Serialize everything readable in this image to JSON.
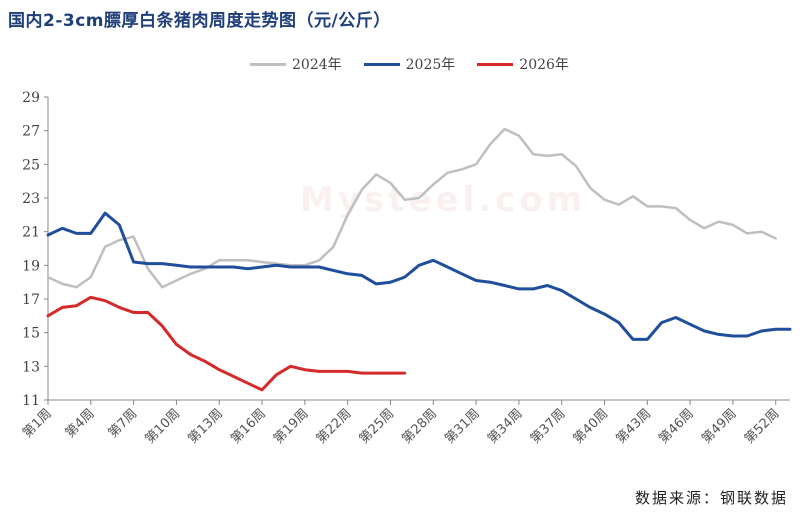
{
  "title": "国内2-3cm膘厚白条猪肉周度走势图（元/公斤）",
  "source": "数据来源：钢联数据",
  "watermark": "Mysteel.com",
  "chart_data": {
    "type": "line",
    "title": "国内2-3cm膘厚白条猪肉周度走势图（元/公斤）",
    "xlabel": "",
    "ylabel": "",
    "ylim": [
      11,
      29
    ],
    "yticks": [
      11,
      13,
      15,
      17,
      19,
      21,
      23,
      25,
      27,
      29
    ],
    "grid": false,
    "legend_position": "top-center",
    "x": [
      "第1周",
      "第2周",
      "第3周",
      "第4周",
      "第5周",
      "第6周",
      "第7周",
      "第8周",
      "第9周",
      "第10周",
      "第11周",
      "第12周",
      "第13周",
      "第14周",
      "第15周",
      "第16周",
      "第17周",
      "第18周",
      "第19周",
      "第20周",
      "第21周",
      "第22周",
      "第23周",
      "第24周",
      "第25周",
      "第26周",
      "第27周",
      "第28周",
      "第29周",
      "第30周",
      "第31周",
      "第32周",
      "第33周",
      "第34周",
      "第35周",
      "第36周",
      "第37周",
      "第38周",
      "第39周",
      "第40周",
      "第41周",
      "第42周",
      "第43周",
      "第44周",
      "第45周",
      "第46周",
      "第47周",
      "第48周",
      "第49周",
      "第50周",
      "第51周",
      "第52周",
      "第53周"
    ],
    "x_tick_labels": [
      "第1周",
      "第4周",
      "第7周",
      "第10周",
      "第13周",
      "第16周",
      "第19周",
      "第22周",
      "第25周",
      "第28周",
      "第31周",
      "第34周",
      "第37周",
      "第40周",
      "第43周",
      "第46周",
      "第49周",
      "第52周"
    ],
    "series": [
      {
        "name": "2024年",
        "color": "#bfbfbf",
        "values": [
          18.3,
          17.9,
          17.7,
          18.3,
          20.1,
          20.5,
          20.7,
          18.8,
          17.7,
          18.1,
          18.5,
          18.8,
          19.3,
          19.3,
          19.3,
          19.2,
          19.1,
          19.0,
          19.0,
          19.3,
          20.1,
          22.0,
          23.5,
          24.4,
          23.9,
          22.9,
          23.0,
          23.8,
          24.5,
          24.7,
          25.0,
          26.2,
          27.1,
          26.7,
          25.6,
          25.5,
          25.6,
          24.9,
          23.6,
          22.9,
          22.6,
          23.1,
          22.5,
          22.5,
          22.4,
          21.7,
          21.2,
          21.6,
          21.4,
          20.9,
          21.0,
          20.6,
          null
        ]
      },
      {
        "name": "2025年",
        "color": "#1f4e9c",
        "values": [
          20.8,
          21.2,
          20.9,
          20.9,
          22.1,
          21.4,
          19.2,
          19.1,
          19.1,
          19.0,
          18.9,
          18.9,
          18.9,
          18.9,
          18.8,
          18.9,
          19.0,
          18.9,
          18.9,
          18.9,
          18.7,
          18.5,
          18.4,
          17.9,
          18.0,
          18.3,
          19.0,
          19.3,
          18.9,
          18.5,
          18.1,
          18.0,
          17.8,
          17.6,
          17.6,
          17.8,
          17.5,
          17.0,
          16.5,
          16.1,
          15.6,
          14.6,
          14.6,
          15.6,
          15.9,
          15.5,
          15.1,
          14.9,
          14.8,
          14.8,
          15.1,
          15.2,
          15.2
        ]
      },
      {
        "name": "2026年",
        "color": "#d42a2a",
        "values": [
          16.0,
          16.5,
          16.6,
          17.1,
          16.9,
          16.5,
          16.2,
          16.2,
          15.4,
          14.3,
          13.7,
          13.3,
          12.8,
          12.4,
          12.0,
          11.6,
          12.5,
          13.0,
          12.8,
          12.7,
          12.7,
          12.7,
          12.6,
          12.6,
          12.6,
          12.6,
          null,
          null,
          null,
          null,
          null,
          null,
          null,
          null,
          null,
          null,
          null,
          null,
          null,
          null,
          null,
          null,
          null,
          null,
          null,
          null,
          null,
          null,
          null,
          null,
          null,
          null,
          null
        ]
      }
    ]
  }
}
